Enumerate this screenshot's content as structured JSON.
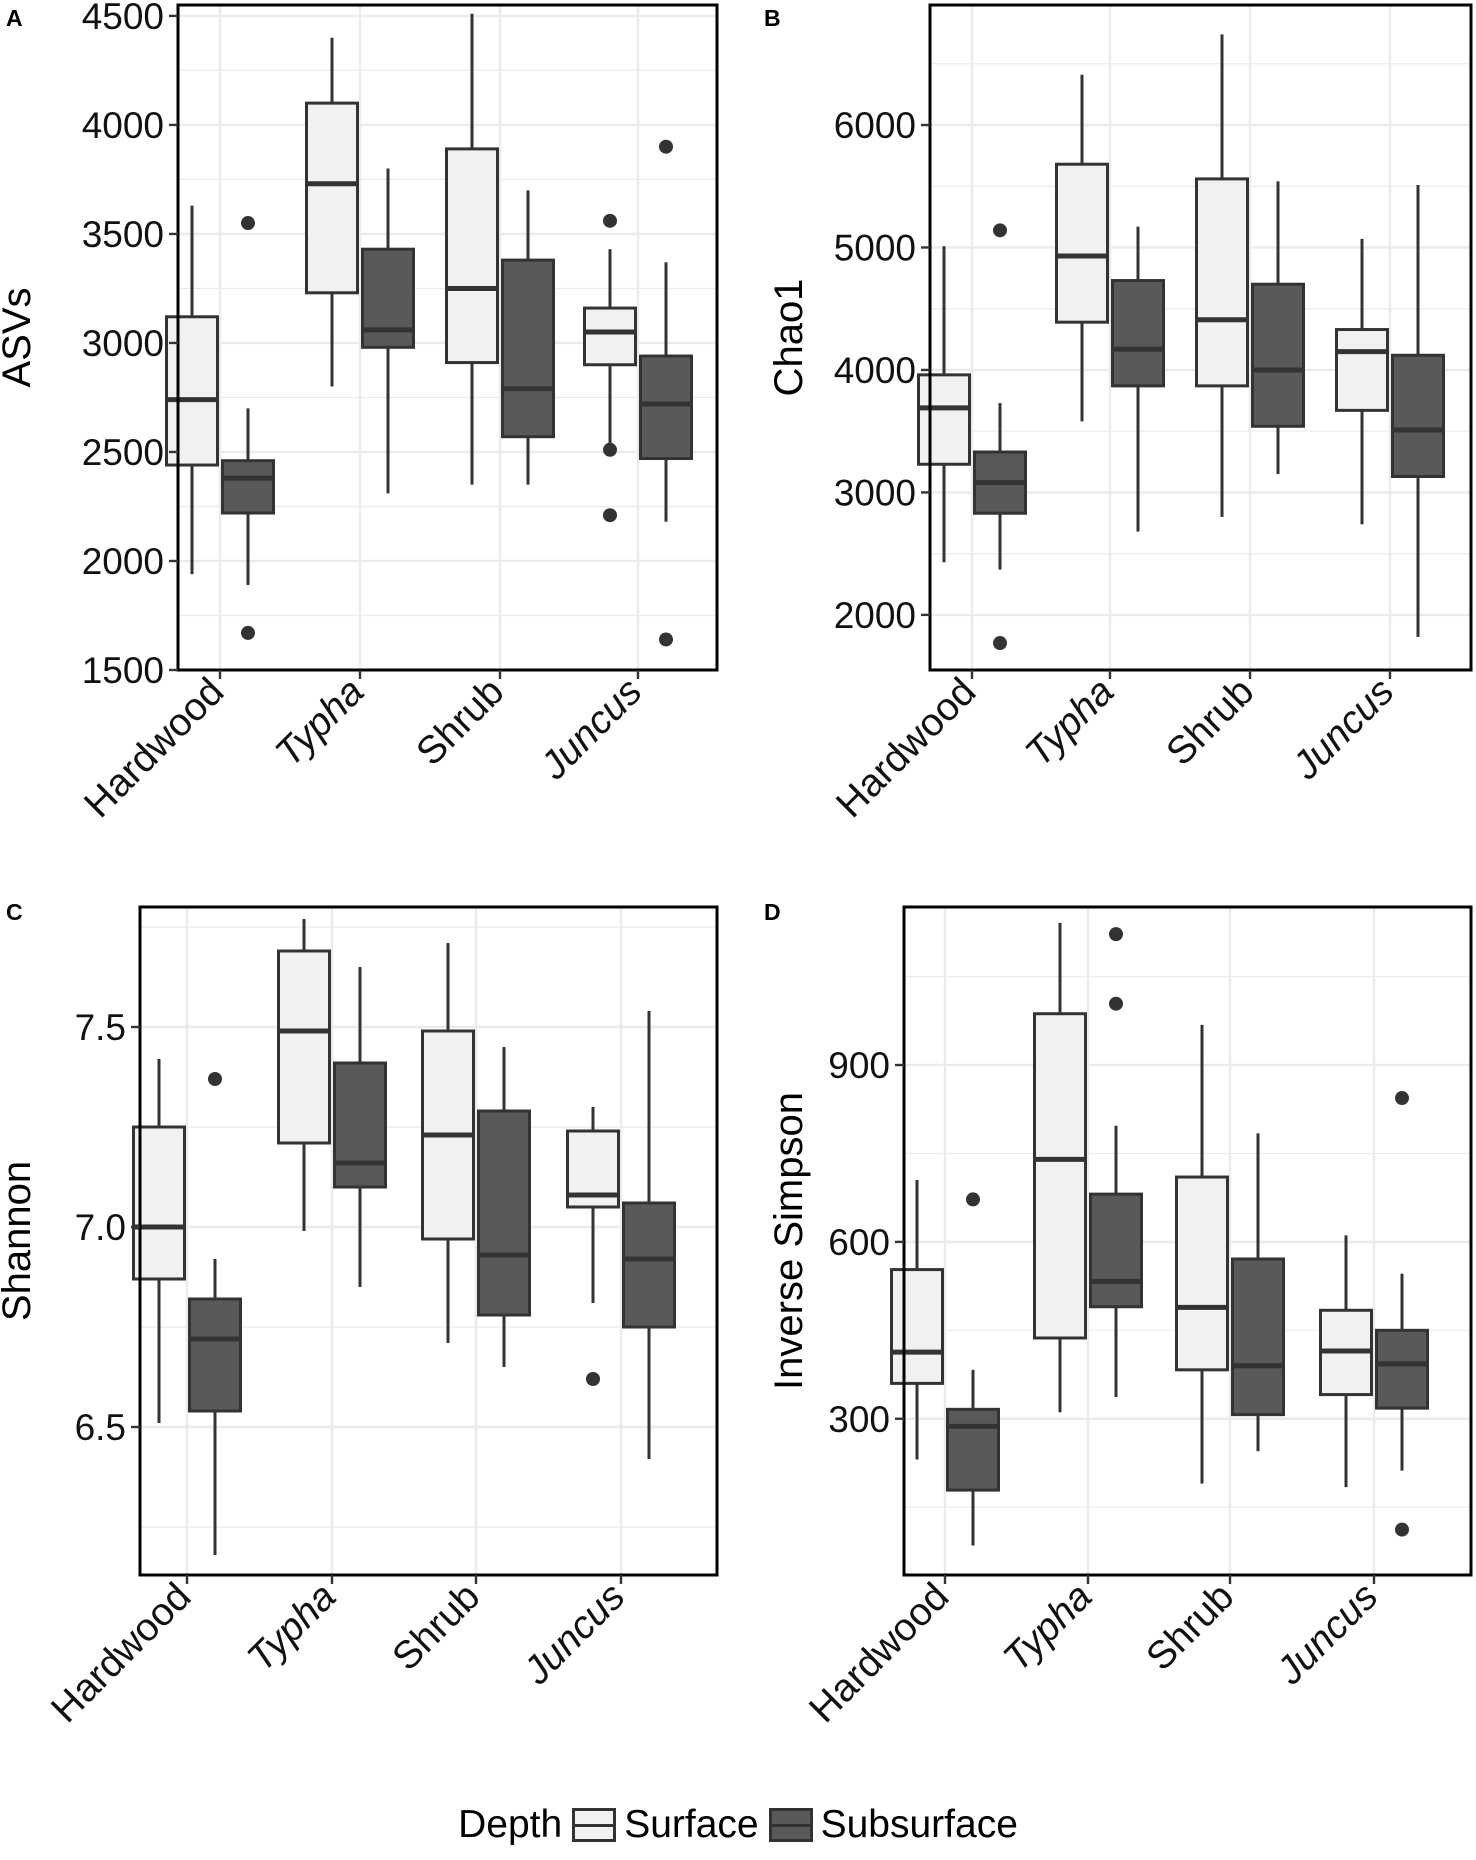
{
  "legend": {
    "title": "Depth",
    "surface_label": "Surface",
    "subsurface_label": "Subsurface",
    "surface_fill": "#f1f1f1",
    "subsurface_fill": "#595959"
  },
  "chart_data": [
    {
      "panel": "A",
      "type": "boxplot",
      "ylabel": "ASVs",
      "ylim": [
        1500,
        4550
      ],
      "yticks": [
        1500,
        2000,
        2500,
        3000,
        3500,
        4000,
        4500
      ],
      "categories": [
        "Hardwood",
        "Typha",
        "Shrub",
        "Juncus"
      ],
      "italic_categories": [
        "Typha",
        "Juncus"
      ],
      "series": [
        {
          "name": "Surface",
          "boxes": [
            {
              "q1": 2440,
              "median": 2740,
              "q3": 3120,
              "lo": 1940,
              "hi": 3630,
              "outliers": []
            },
            {
              "q1": 3230,
              "median": 3730,
              "q3": 4100,
              "lo": 2800,
              "hi": 4400,
              "outliers": []
            },
            {
              "q1": 2910,
              "median": 3250,
              "q3": 3890,
              "lo": 2350,
              "hi": 4510,
              "outliers": []
            },
            {
              "q1": 2900,
              "median": 3050,
              "q3": 3160,
              "lo": 2530,
              "hi": 3430,
              "outliers": [
                3560,
                2510,
                2210
              ]
            }
          ]
        },
        {
          "name": "Subsurface",
          "boxes": [
            {
              "q1": 2220,
              "median": 2380,
              "q3": 2460,
              "lo": 1890,
              "hi": 2700,
              "outliers": [
                3550,
                1670
              ]
            },
            {
              "q1": 2980,
              "median": 3060,
              "q3": 3430,
              "lo": 2310,
              "hi": 3800,
              "outliers": []
            },
            {
              "q1": 2570,
              "median": 2790,
              "q3": 3380,
              "lo": 2350,
              "hi": 3700,
              "outliers": []
            },
            {
              "q1": 2470,
              "median": 2720,
              "q3": 2940,
              "lo": 2180,
              "hi": 3370,
              "outliers": [
                3900,
                1640
              ]
            }
          ]
        }
      ]
    },
    {
      "panel": "B",
      "type": "boxplot",
      "ylabel": "Chao1",
      "ylim": [
        1550,
        6980
      ],
      "yticks": [
        2000,
        3000,
        4000,
        5000,
        6000
      ],
      "categories": [
        "Hardwood",
        "Typha",
        "Shrub",
        "Juncus"
      ],
      "italic_categories": [
        "Typha",
        "Juncus"
      ],
      "series": [
        {
          "name": "Surface",
          "boxes": [
            {
              "q1": 3230,
              "median": 3690,
              "q3": 3960,
              "lo": 2430,
              "hi": 5010,
              "outliers": []
            },
            {
              "q1": 4390,
              "median": 4930,
              "q3": 5680,
              "lo": 3580,
              "hi": 6410,
              "outliers": []
            },
            {
              "q1": 3870,
              "median": 4410,
              "q3": 5560,
              "lo": 2800,
              "hi": 6740,
              "outliers": []
            },
            {
              "q1": 3670,
              "median": 4150,
              "q3": 4330,
              "lo": 2740,
              "hi": 5070,
              "outliers": []
            }
          ]
        },
        {
          "name": "Subsurface",
          "boxes": [
            {
              "q1": 2830,
              "median": 3080,
              "q3": 3330,
              "lo": 2370,
              "hi": 3730,
              "outliers": [
                5140,
                1770
              ]
            },
            {
              "q1": 3870,
              "median": 4170,
              "q3": 4730,
              "lo": 2680,
              "hi": 5170,
              "outliers": []
            },
            {
              "q1": 3540,
              "median": 4000,
              "q3": 4700,
              "lo": 3150,
              "hi": 5540,
              "outliers": []
            },
            {
              "q1": 3130,
              "median": 3510,
              "q3": 4120,
              "lo": 1820,
              "hi": 5510,
              "outliers": []
            }
          ]
        }
      ]
    },
    {
      "panel": "C",
      "type": "boxplot",
      "ylabel": "Shannon",
      "ylim": [
        6.13,
        7.8
      ],
      "yticks": [
        6.5,
        7.0,
        7.5
      ],
      "ytick_labels": [
        "6.5",
        "7.0",
        "7.5"
      ],
      "categories": [
        "Hardwood",
        "Typha",
        "Shrub",
        "Juncus"
      ],
      "italic_categories": [
        "Typha",
        "Juncus"
      ],
      "series": [
        {
          "name": "Surface",
          "boxes": [
            {
              "q1": 6.87,
              "median": 7.0,
              "q3": 7.25,
              "lo": 6.51,
              "hi": 7.42,
              "outliers": []
            },
            {
              "q1": 7.21,
              "median": 7.49,
              "q3": 7.69,
              "lo": 6.99,
              "hi": 7.77,
              "outliers": []
            },
            {
              "q1": 6.97,
              "median": 7.23,
              "q3": 7.49,
              "lo": 6.71,
              "hi": 7.71,
              "outliers": []
            },
            {
              "q1": 7.05,
              "median": 7.08,
              "q3": 7.24,
              "lo": 6.81,
              "hi": 7.3,
              "outliers": [
                6.62
              ]
            }
          ]
        },
        {
          "name": "Subsurface",
          "boxes": [
            {
              "q1": 6.54,
              "median": 6.72,
              "q3": 6.82,
              "lo": 6.18,
              "hi": 6.92,
              "outliers": [
                7.37
              ]
            },
            {
              "q1": 7.1,
              "median": 7.16,
              "q3": 7.41,
              "lo": 6.85,
              "hi": 7.65,
              "outliers": []
            },
            {
              "q1": 6.78,
              "median": 6.93,
              "q3": 7.29,
              "lo": 6.65,
              "hi": 7.45,
              "outliers": []
            },
            {
              "q1": 6.75,
              "median": 6.92,
              "q3": 7.06,
              "lo": 6.42,
              "hi": 7.54,
              "outliers": []
            }
          ]
        }
      ]
    },
    {
      "panel": "D",
      "type": "boxplot",
      "ylabel": "Inverse Simpson",
      "ylim": [
        35,
        1168
      ],
      "yticks": [
        300,
        600,
        900
      ],
      "categories": [
        "Hardwood",
        "Typha",
        "Shrub",
        "Juncus"
      ],
      "italic_categories": [
        "Typha",
        "Juncus"
      ],
      "series": [
        {
          "name": "Surface",
          "boxes": [
            {
              "q1": 360,
              "median": 413,
              "q3": 553,
              "lo": 231,
              "hi": 705,
              "outliers": []
            },
            {
              "q1": 437,
              "median": 740,
              "q3": 987,
              "lo": 311,
              "hi": 1141,
              "outliers": []
            },
            {
              "q1": 383,
              "median": 489,
              "q3": 710,
              "lo": 190,
              "hi": 968,
              "outliers": []
            },
            {
              "q1": 341,
              "median": 415,
              "q3": 484,
              "lo": 184,
              "hi": 611,
              "outliers": []
            }
          ]
        },
        {
          "name": "Subsurface",
          "boxes": [
            {
              "q1": 179,
              "median": 287,
              "q3": 316,
              "lo": 85,
              "hi": 383,
              "outliers": [
                672
              ]
            },
            {
              "q1": 490,
              "median": 533,
              "q3": 681,
              "lo": 337,
              "hi": 797,
              "outliers": [
                1122,
                1004
              ]
            },
            {
              "q1": 307,
              "median": 390,
              "q3": 571,
              "lo": 245,
              "hi": 784,
              "outliers": []
            },
            {
              "q1": 318,
              "median": 393,
              "q3": 450,
              "lo": 212,
              "hi": 546,
              "outliers": [
                844,
                112
              ]
            }
          ]
        }
      ]
    }
  ]
}
